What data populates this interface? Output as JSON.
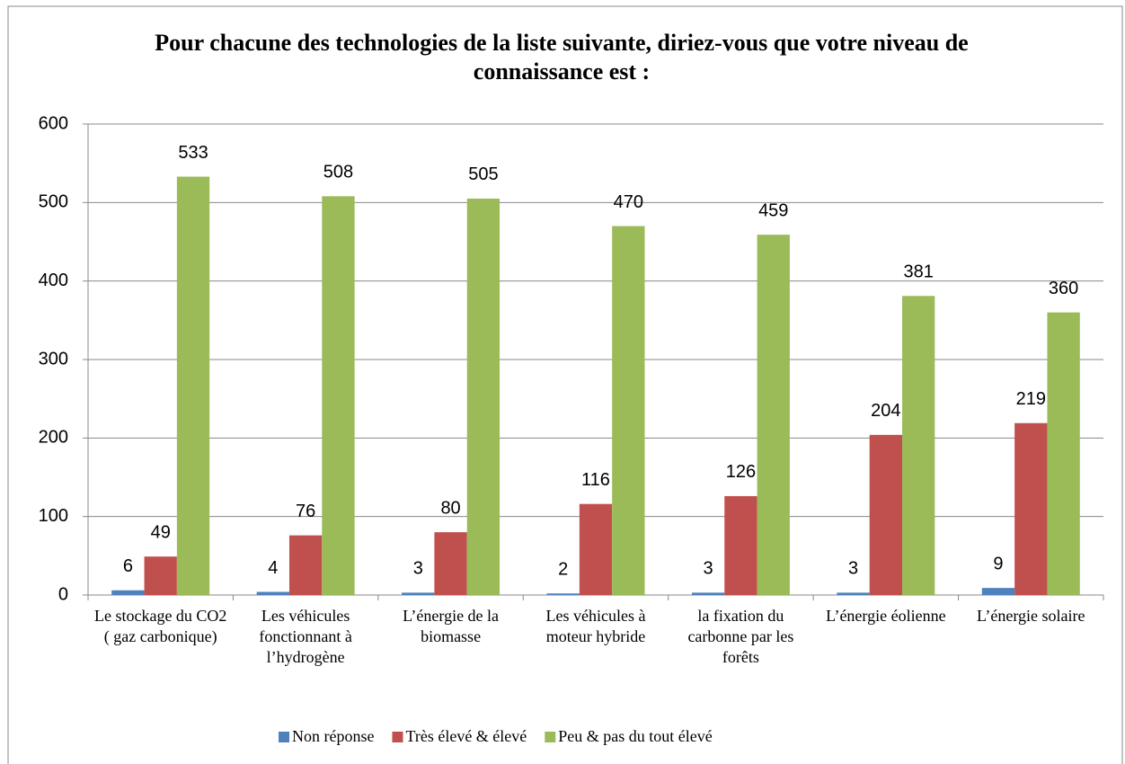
{
  "chart_data": {
    "type": "bar",
    "title": "Pour chacune des technologies de la liste suivante, diriez-vous que votre niveau de connaissance est :",
    "categories": [
      "Le stockage du CO2 ( gaz carbonique)",
      "Les véhicules fonctionnant à l’hydrogène",
      "L’énergie de la biomasse",
      "Les véhicules à moteur hybride",
      "la fixation du carbonne par les forêts",
      "L’énergie éolienne",
      "L’énergie solaire"
    ],
    "series": [
      {
        "name": "Non réponse",
        "color": "#4f81bd",
        "values": [
          6,
          4,
          3,
          2,
          3,
          3,
          9
        ]
      },
      {
        "name": "Très élevé & élevé",
        "color": "#c0504d",
        "values": [
          49,
          76,
          80,
          116,
          126,
          204,
          219
        ]
      },
      {
        "name": "Peu & pas du tout élevé",
        "color": "#9bbb59",
        "values": [
          533,
          508,
          505,
          470,
          459,
          381,
          360
        ]
      }
    ],
    "ylim": [
      0,
      600
    ],
    "yticks": [
      0,
      100,
      200,
      300,
      400,
      500,
      600
    ],
    "grid": true,
    "legend": "bottom"
  }
}
